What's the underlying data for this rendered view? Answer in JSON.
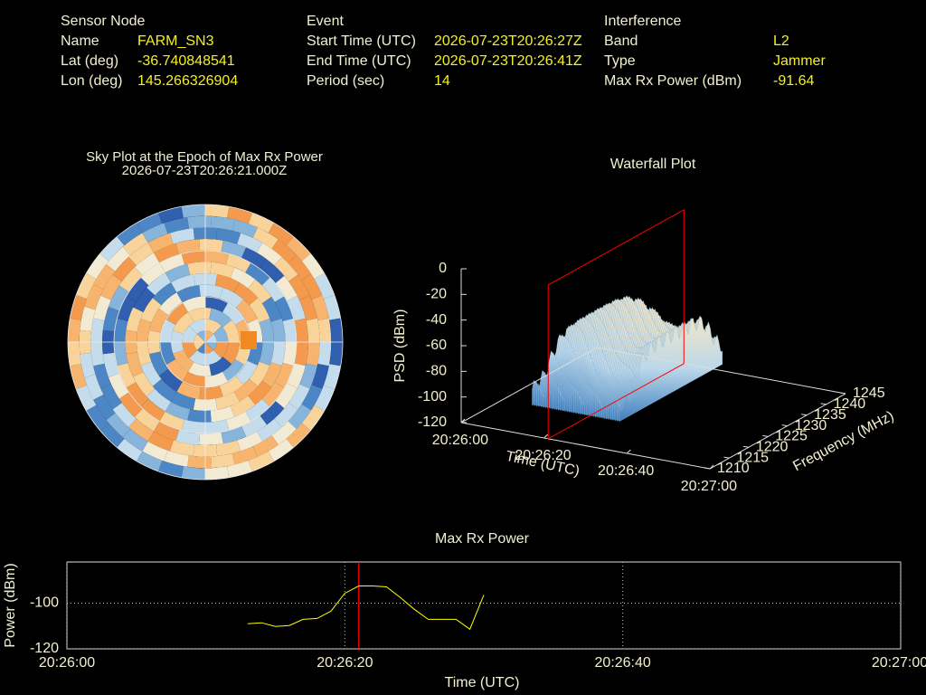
{
  "panels": [
    {
      "heading": "Sensor Node",
      "rows": [
        {
          "label": "Name",
          "value": "FARM_SN3"
        },
        {
          "label": "Lat (deg)",
          "value": -36.740848541
        },
        {
          "label": "Lon (deg)",
          "value": 145.266326904
        }
      ]
    },
    {
      "heading": "Event",
      "rows": [
        {
          "label": "Start Time (UTC)",
          "value": "2026-07-23T20:26:27Z"
        },
        {
          "label": "End Time (UTC)",
          "value": "2026-07-23T20:26:41Z"
        },
        {
          "label": "Period (sec)",
          "value": 14
        }
      ]
    },
    {
      "heading": "Interference",
      "rows": [
        {
          "label": "Band",
          "value": "L2"
        },
        {
          "label": "Type",
          "value": "Jammer"
        },
        {
          "label": "Max Rx Power (dBm)",
          "value": -91.64
        }
      ]
    }
  ],
  "chart_data": [
    {
      "type": "polar-heatmap",
      "title": "Sky Plot at the Epoch of Max Rx Power",
      "subtitle": "2026-07-23T20:26:21.000Z"
    },
    {
      "type": "surface",
      "title": "Waterfall Plot",
      "marker_x": "20:26:21",
      "marker_color": "#ff0000",
      "xlabel": "Time (UTC)",
      "xlim": [
        "20:26:00",
        "20:27:00"
      ],
      "xticks": [
        "20:26:00",
        "20:26:20",
        "20:26:40",
        "20:27:00"
      ],
      "ylabel": "Frequency (MHz)",
      "ylim": [
        1210,
        1245
      ],
      "yticks": [
        1210,
        1215,
        1220,
        1225,
        1230,
        1235,
        1240,
        1245
      ],
      "zlabel": "PSD (dBm)",
      "zlim": [
        -120,
        0
      ],
      "zticks": [
        0,
        -20,
        -40,
        -60,
        -80,
        -100,
        -120
      ]
    },
    {
      "type": "line",
      "title": "Max Rx Power",
      "xlabel": "Time (UTC)",
      "ylabel": "Power (dBm)",
      "color": "#ffff00",
      "marker_x": "20:26:21",
      "marker_color": "#ff0000",
      "grid": true,
      "xlim": [
        "20:26:00",
        "20:27:00"
      ],
      "xticks": [
        "20:26:00",
        "20:26:20",
        "20:26:40",
        "20:27:00"
      ],
      "ylim": [
        -120,
        -82
      ],
      "yticks": [
        -100,
        -120
      ],
      "x": [
        "20:26:13",
        "20:26:14",
        "20:26:15",
        "20:26:16",
        "20:26:17",
        "20:26:18",
        "20:26:19",
        "20:26:20",
        "20:26:21",
        "20:26:22",
        "20:26:23",
        "20:26:24",
        "20:26:25",
        "20:26:26",
        "20:26:27",
        "20:26:28",
        "20:26:29",
        "20:26:30"
      ],
      "values": [
        -109.0,
        -108.6,
        -110.2,
        -109.8,
        -107.1,
        -106.7,
        -103.5,
        -95.7,
        -92.5,
        -92.5,
        -92.9,
        -97.6,
        -102.7,
        -107.1,
        -107.1,
        -107.1,
        -111.4,
        -96.5
      ]
    }
  ]
}
